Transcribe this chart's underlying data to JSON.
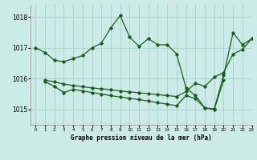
{
  "title": "Graphe pression niveau de la mer (hPa)",
  "background_color": "#cceae7",
  "grid_color": "#aad4d0",
  "line_color": "#1a5c1a",
  "xlim": [
    -0.5,
    23
  ],
  "ylim": [
    1014.5,
    1018.4
  ],
  "yticks": [
    1015,
    1016,
    1017,
    1018
  ],
  "xticks": [
    0,
    1,
    2,
    3,
    4,
    5,
    6,
    7,
    8,
    9,
    10,
    11,
    12,
    13,
    14,
    15,
    16,
    17,
    18,
    19,
    20,
    21,
    22,
    23
  ],
  "series1_x": [
    0,
    1,
    2,
    3,
    4,
    5,
    6,
    7,
    8,
    9,
    10,
    11,
    12,
    13,
    14,
    15,
    16,
    17,
    18,
    19,
    20,
    21,
    22,
    23
  ],
  "series1_y": [
    1017.0,
    1016.85,
    1016.6,
    1016.55,
    1016.65,
    1016.75,
    1017.0,
    1017.15,
    1017.65,
    1018.05,
    1017.35,
    1017.05,
    1017.3,
    1017.1,
    1017.1,
    1016.8,
    1015.7,
    1015.45,
    1015.05,
    1015.02,
    1016.1,
    1017.5,
    1017.1,
    1017.3
  ],
  "series2_x": [
    1,
    2,
    3,
    4,
    5,
    6,
    7,
    8,
    9,
    10,
    11,
    12,
    13,
    14,
    15,
    16,
    17,
    18,
    19,
    20,
    21,
    22,
    23
  ],
  "series2_y": [
    1015.95,
    1015.9,
    1015.82,
    1015.78,
    1015.74,
    1015.7,
    1015.67,
    1015.64,
    1015.6,
    1015.57,
    1015.54,
    1015.51,
    1015.48,
    1015.45,
    1015.42,
    1015.58,
    1015.85,
    1015.75,
    1016.05,
    1016.2,
    1016.8,
    1016.95,
    1017.3
  ],
  "series3_x": [
    1,
    2,
    3,
    4,
    5,
    6,
    7,
    8,
    9,
    10,
    11,
    12,
    13,
    14,
    15,
    16,
    17,
    18,
    19,
    20
  ],
  "series3_y": [
    1015.9,
    1015.75,
    1015.55,
    1015.65,
    1015.6,
    1015.55,
    1015.5,
    1015.45,
    1015.4,
    1015.36,
    1015.32,
    1015.27,
    1015.22,
    1015.17,
    1015.12,
    1015.45,
    1015.35,
    1015.05,
    1015.0,
    1015.95
  ]
}
